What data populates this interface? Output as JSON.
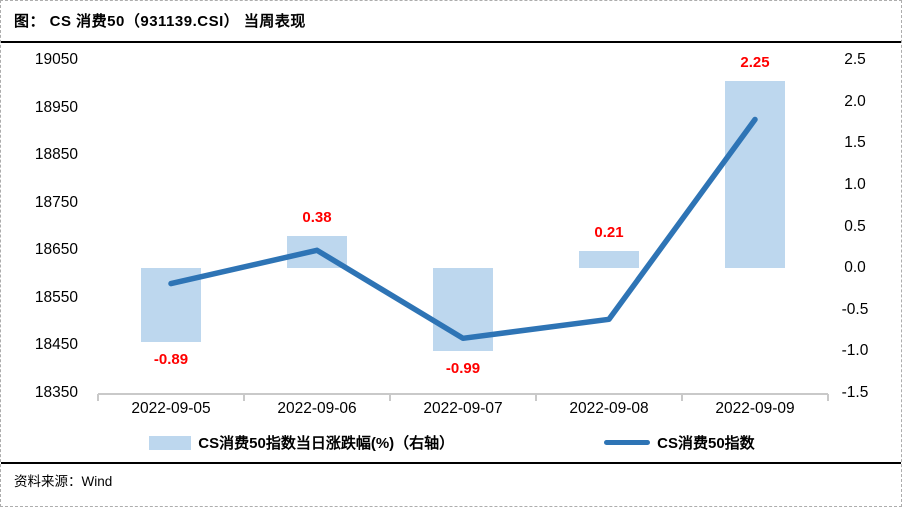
{
  "title": "图： CS 消费50（931139.CSI） 当周表现",
  "source": {
    "label": "资料来源：",
    "value": "Wind"
  },
  "legend": {
    "bar_label": "CS消费50指数当日涨跌幅(%)（右轴）",
    "line_label": "CS消费50指数"
  },
  "colors": {
    "bar": "#BDD7EE",
    "line": "#2E74B5",
    "data_label": "#FF0000",
    "axis_line": "#C9C9C9",
    "rule": "#000000"
  },
  "chart_data": {
    "type": "combo",
    "categories": [
      "2022-09-05",
      "2022-09-06",
      "2022-09-07",
      "2022-09-08",
      "2022-09-09"
    ],
    "series": [
      {
        "name": "CS消费50指数当日涨跌幅(%)（右轴）",
        "type": "bar",
        "axis": "right",
        "values": [
          -0.89,
          0.38,
          -0.99,
          0.21,
          2.25
        ],
        "labels": [
          "-0.89",
          "0.38",
          "-0.99",
          "0.21",
          "2.25"
        ]
      },
      {
        "name": "CS消费50指数",
        "type": "line",
        "axis": "left",
        "values": [
          18580,
          18650,
          18465,
          18505,
          18925
        ]
      }
    ],
    "left_axis": {
      "min": 18350,
      "max": 19050,
      "ticks": [
        "19050",
        "18950",
        "18850",
        "18750",
        "18650",
        "18550",
        "18450",
        "18350"
      ]
    },
    "right_axis": {
      "min": -1.5,
      "max": 2.5,
      "ticks": [
        "2.5",
        "2.0",
        "1.5",
        "1.0",
        "0.5",
        "0.0",
        "-0.5",
        "-1.0",
        "-1.5"
      ]
    },
    "grid": false,
    "legend_position": "bottom"
  }
}
